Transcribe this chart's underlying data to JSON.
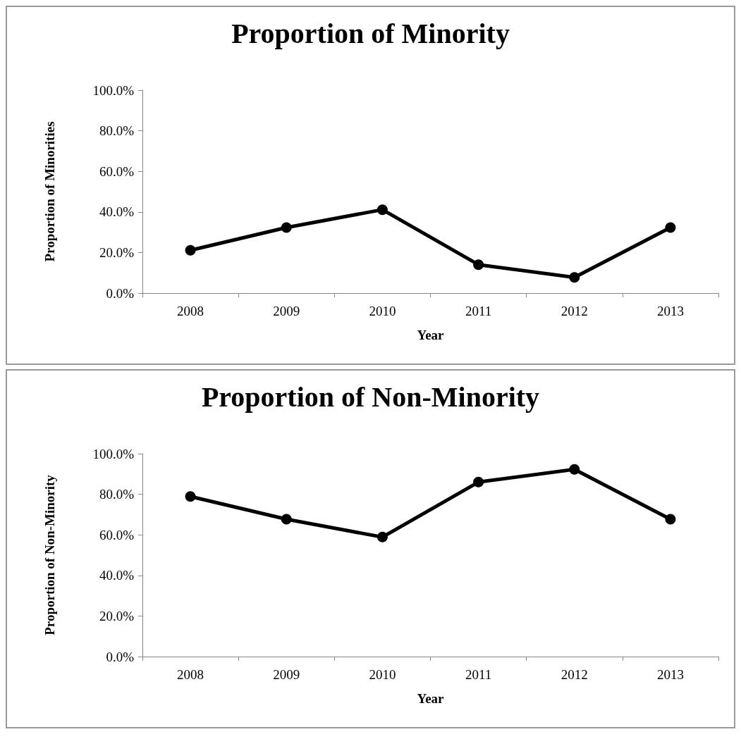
{
  "chart_data": [
    {
      "type": "line",
      "title": "Proportion of Minority",
      "xlabel": "Year",
      "ylabel": "Proportion of Minorities",
      "categories": [
        "2008",
        "2009",
        "2010",
        "2011",
        "2012",
        "2013"
      ],
      "values": [
        21.1,
        32.3,
        41.1,
        14.0,
        7.7,
        32.3
      ],
      "color": "#000000",
      "marker": "circle",
      "line_style": "solid",
      "grid": false,
      "ylim": [
        0,
        100
      ],
      "yticks": [
        {
          "value": 0,
          "label": "0.0%"
        },
        {
          "value": 20,
          "label": "20.0%"
        },
        {
          "value": 40,
          "label": "40.0%"
        },
        {
          "value": 60,
          "label": "60.0%"
        },
        {
          "value": 80,
          "label": "80.0%"
        },
        {
          "value": 100,
          "label": "100.0%"
        }
      ]
    },
    {
      "type": "line",
      "title": "Proportion of Non-Minority",
      "xlabel": "Year",
      "ylabel": "Proportion of Non-Minority",
      "categories": [
        "2008",
        "2009",
        "2010",
        "2011",
        "2012",
        "2013"
      ],
      "values": [
        78.9,
        67.7,
        58.9,
        86.0,
        92.3,
        67.7
      ],
      "color": "#000000",
      "marker": "circle",
      "line_style": "solid",
      "grid": false,
      "ylim": [
        0,
        100
      ],
      "yticks": [
        {
          "value": 0,
          "label": "0.0%"
        },
        {
          "value": 20,
          "label": "20.0%"
        },
        {
          "value": 40,
          "label": "40.0%"
        },
        {
          "value": 60,
          "label": "60.0%"
        },
        {
          "value": 80,
          "label": "80.0%"
        },
        {
          "value": 100,
          "label": "100.0%"
        }
      ]
    }
  ]
}
